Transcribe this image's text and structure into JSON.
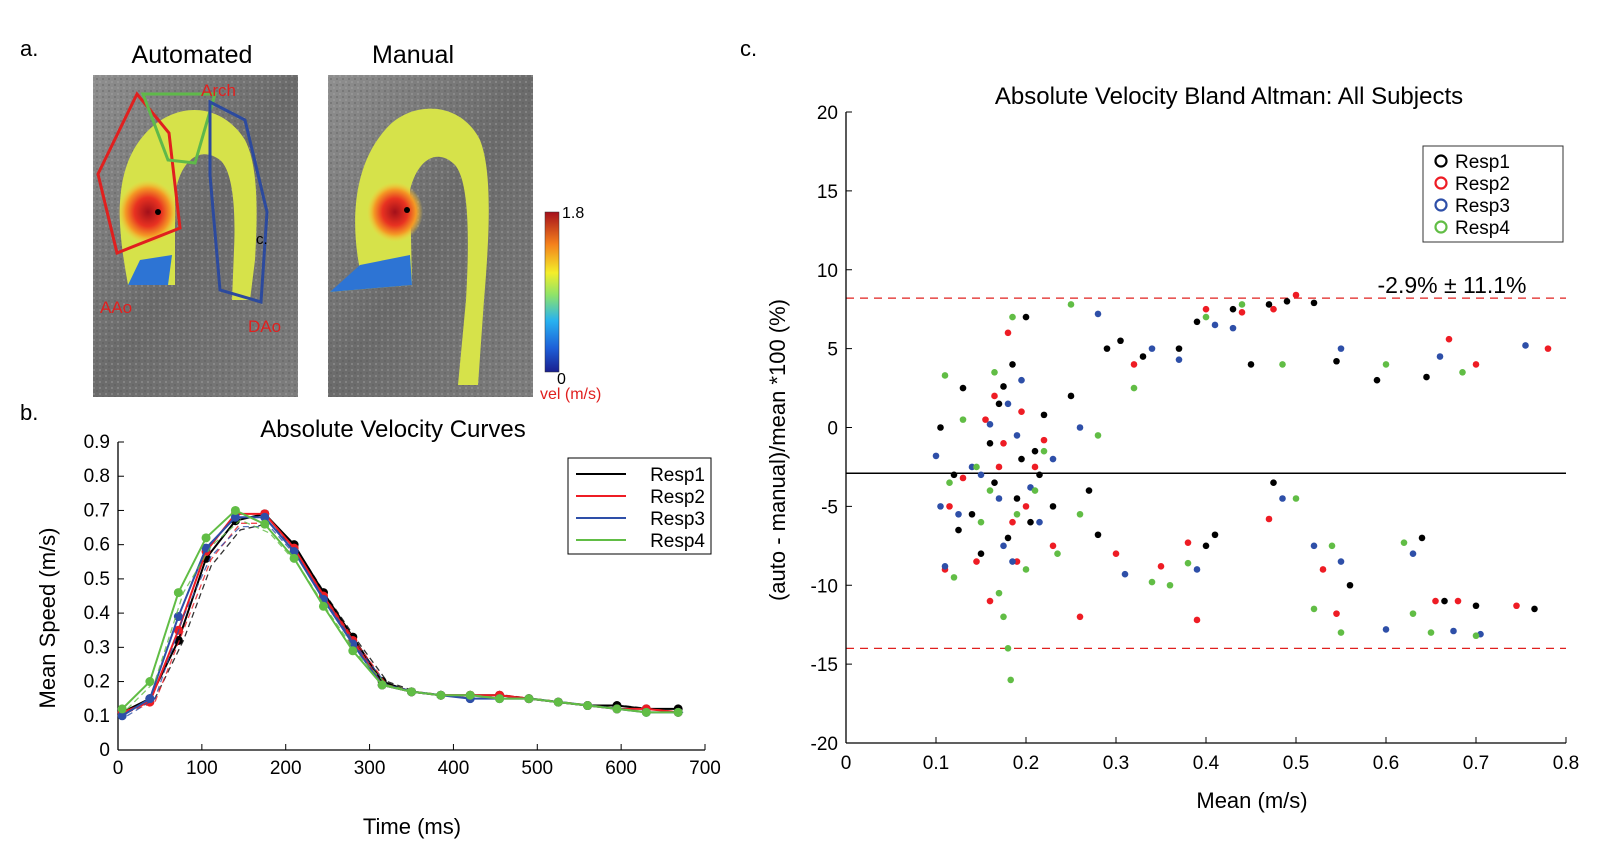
{
  "colors": {
    "resp1": "#000000",
    "resp2": "#ee1c24",
    "resp3": "#2e4fa8",
    "resp4": "#61bd45",
    "limit_line": "#e0201f",
    "roi_red": "#e0201f",
    "roi_green": "#5fb94a",
    "roi_blue": "#2c4a9e"
  },
  "panel_a": {
    "letter": "a.",
    "automated_title": "Automated",
    "manual_title": "Manual",
    "roi_labels": {
      "arch": "Arch",
      "aao": "AAo",
      "dao": "DAo",
      "c": "c."
    },
    "colorbar": {
      "max_label": "1.8",
      "min_label": "0",
      "unit_label": "vel (m/s)",
      "min": 0,
      "max": 1.8
    }
  },
  "panel_b": {
    "letter": "b.",
    "chart_data": {
      "type": "line",
      "title": "Absolute Velocity Curves",
      "xlabel": "Time (ms)",
      "ylabel": "Mean Speed (m/s)",
      "xlim": [
        0,
        700
      ],
      "ylim": [
        0,
        0.9
      ],
      "xticks": [
        "0",
        "100",
        "200",
        "300",
        "400",
        "500",
        "600",
        "700"
      ],
      "yticks": [
        "0",
        "0.1",
        "0.2",
        "0.3",
        "0.4",
        "0.5",
        "0.6",
        "0.7",
        "0.8",
        "0.9"
      ],
      "legend_position": "top-right",
      "x": [
        5,
        38,
        72,
        105,
        140,
        175,
        210,
        245,
        280,
        315,
        350,
        385,
        420,
        455,
        490,
        525,
        560,
        595,
        630,
        668
      ],
      "series": [
        {
          "name": "Resp1",
          "color_key": "resp1",
          "values": [
            0.11,
            0.15,
            0.32,
            0.56,
            0.67,
            0.69,
            0.6,
            0.46,
            0.33,
            0.2,
            0.17,
            0.16,
            0.16,
            0.16,
            0.15,
            0.14,
            0.13,
            0.13,
            0.12,
            0.12
          ]
        },
        {
          "name": "Resp2",
          "color_key": "resp2",
          "values": [
            0.11,
            0.14,
            0.35,
            0.58,
            0.69,
            0.69,
            0.59,
            0.45,
            0.32,
            0.19,
            0.17,
            0.16,
            0.16,
            0.16,
            0.15,
            0.14,
            0.13,
            0.12,
            0.12,
            0.11
          ]
        },
        {
          "name": "Resp3",
          "color_key": "resp3",
          "values": [
            0.1,
            0.15,
            0.39,
            0.59,
            0.68,
            0.68,
            0.58,
            0.44,
            0.31,
            0.19,
            0.17,
            0.16,
            0.15,
            0.15,
            0.15,
            0.14,
            0.13,
            0.12,
            0.11,
            0.11
          ]
        },
        {
          "name": "Resp4",
          "color_key": "resp4",
          "values": [
            0.12,
            0.2,
            0.46,
            0.62,
            0.7,
            0.66,
            0.56,
            0.42,
            0.29,
            0.19,
            0.17,
            0.16,
            0.16,
            0.15,
            0.15,
            0.14,
            0.13,
            0.12,
            0.11,
            0.11
          ]
        }
      ]
    }
  },
  "panel_c": {
    "letter": "c.",
    "chart_data": {
      "type": "scatter",
      "title": "Absolute Velocity Bland Altman: All Subjects",
      "xlabel": "Mean (m/s)",
      "ylabel": "(auto - manual)/mean *100    (%)",
      "xlim": [
        0,
        0.8
      ],
      "ylim": [
        -20,
        20
      ],
      "xticks": [
        "0",
        "0.1",
        "0.2",
        "0.3",
        "0.4",
        "0.5",
        "0.6",
        "0.7",
        "0.8"
      ],
      "yticks": [
        "-20",
        "-15",
        "-10",
        "-5",
        "0",
        "5",
        "10",
        "15",
        "20"
      ],
      "legend_position": "top-right",
      "mean_line": -2.9,
      "upper_limit": 8.2,
      "lower_limit": -14.0,
      "annotation": "-2.9% ± 11.1%",
      "series": [
        {
          "name": "Resp1",
          "color_key": "resp1",
          "points": [
            [
              0.105,
              0.0
            ],
            [
              0.12,
              -3.0
            ],
            [
              0.125,
              -6.5
            ],
            [
              0.13,
              2.5
            ],
            [
              0.14,
              -5.5
            ],
            [
              0.15,
              -8.0
            ],
            [
              0.16,
              -1.0
            ],
            [
              0.165,
              -3.5
            ],
            [
              0.17,
              1.5
            ],
            [
              0.175,
              2.6
            ],
            [
              0.18,
              -7.0
            ],
            [
              0.185,
              4.0
            ],
            [
              0.19,
              -4.5
            ],
            [
              0.195,
              -2.0
            ],
            [
              0.2,
              7.0
            ],
            [
              0.205,
              -6.0
            ],
            [
              0.21,
              -1.5
            ],
            [
              0.215,
              -3.0
            ],
            [
              0.22,
              0.8
            ],
            [
              0.23,
              -5.0
            ],
            [
              0.25,
              2.0
            ],
            [
              0.27,
              -4.0
            ],
            [
              0.28,
              -6.8
            ],
            [
              0.29,
              5.0
            ],
            [
              0.305,
              5.5
            ],
            [
              0.33,
              4.5
            ],
            [
              0.37,
              5.0
            ],
            [
              0.39,
              6.7
            ],
            [
              0.4,
              -7.5
            ],
            [
              0.41,
              -6.8
            ],
            [
              0.43,
              7.5
            ],
            [
              0.45,
              4.0
            ],
            [
              0.47,
              7.8
            ],
            [
              0.475,
              -3.5
            ],
            [
              0.49,
              8.0
            ],
            [
              0.52,
              7.9
            ],
            [
              0.545,
              4.2
            ],
            [
              0.56,
              -10.0
            ],
            [
              0.59,
              3.0
            ],
            [
              0.64,
              -7.0
            ],
            [
              0.645,
              3.2
            ],
            [
              0.665,
              -11.0
            ],
            [
              0.7,
              -11.3
            ],
            [
              0.765,
              -11.5
            ]
          ]
        },
        {
          "name": "Resp2",
          "color_key": "resp2",
          "points": [
            [
              0.11,
              -9.0
            ],
            [
              0.115,
              -5.0
            ],
            [
              0.13,
              -3.2
            ],
            [
              0.145,
              -8.5
            ],
            [
              0.155,
              0.5
            ],
            [
              0.16,
              -11.0
            ],
            [
              0.165,
              2.0
            ],
            [
              0.17,
              -2.5
            ],
            [
              0.175,
              -1.0
            ],
            [
              0.18,
              6.0
            ],
            [
              0.185,
              -6.0
            ],
            [
              0.19,
              -8.5
            ],
            [
              0.195,
              1.0
            ],
            [
              0.2,
              -5.0
            ],
            [
              0.21,
              -2.5
            ],
            [
              0.22,
              -0.8
            ],
            [
              0.23,
              -7.5
            ],
            [
              0.26,
              -12.0
            ],
            [
              0.3,
              -8.0
            ],
            [
              0.32,
              4.0
            ],
            [
              0.35,
              -8.8
            ],
            [
              0.38,
              -7.3
            ],
            [
              0.39,
              -12.2
            ],
            [
              0.4,
              7.5
            ],
            [
              0.44,
              7.3
            ],
            [
              0.47,
              -5.8
            ],
            [
              0.475,
              7.5
            ],
            [
              0.5,
              8.4
            ],
            [
              0.53,
              -9.0
            ],
            [
              0.545,
              -11.8
            ],
            [
              0.655,
              -11.0
            ],
            [
              0.67,
              5.6
            ],
            [
              0.68,
              -11.0
            ],
            [
              0.7,
              4.0
            ],
            [
              0.745,
              -11.3
            ],
            [
              0.78,
              5.0
            ]
          ]
        },
        {
          "name": "Resp3",
          "color_key": "resp3",
          "points": [
            [
              0.1,
              -1.8
            ],
            [
              0.105,
              -5.0
            ],
            [
              0.11,
              -8.8
            ],
            [
              0.125,
              -5.5
            ],
            [
              0.14,
              -2.5
            ],
            [
              0.15,
              -3.0
            ],
            [
              0.16,
              0.2
            ],
            [
              0.17,
              -4.5
            ],
            [
              0.175,
              -7.5
            ],
            [
              0.18,
              1.5
            ],
            [
              0.185,
              -8.5
            ],
            [
              0.19,
              -0.5
            ],
            [
              0.195,
              3.0
            ],
            [
              0.205,
              -3.8
            ],
            [
              0.215,
              -6.0
            ],
            [
              0.23,
              -2.0
            ],
            [
              0.26,
              0.0
            ],
            [
              0.28,
              7.2
            ],
            [
              0.31,
              -9.3
            ],
            [
              0.34,
              5.0
            ],
            [
              0.37,
              4.3
            ],
            [
              0.39,
              -9.0
            ],
            [
              0.41,
              6.5
            ],
            [
              0.43,
              6.3
            ],
            [
              0.485,
              -4.5
            ],
            [
              0.52,
              -7.5
            ],
            [
              0.55,
              -8.5
            ],
            [
              0.55,
              5.0
            ],
            [
              0.6,
              -12.8
            ],
            [
              0.63,
              -8.0
            ],
            [
              0.66,
              4.5
            ],
            [
              0.675,
              -12.9
            ],
            [
              0.705,
              -13.1
            ],
            [
              0.755,
              5.2
            ]
          ]
        },
        {
          "name": "Resp4",
          "color_key": "resp4",
          "points": [
            [
              0.11,
              3.3
            ],
            [
              0.115,
              -3.5
            ],
            [
              0.12,
              -9.5
            ],
            [
              0.13,
              0.5
            ],
            [
              0.145,
              -2.5
            ],
            [
              0.15,
              -6.0
            ],
            [
              0.16,
              -4.0
            ],
            [
              0.165,
              3.5
            ],
            [
              0.17,
              -10.5
            ],
            [
              0.175,
              -12.0
            ],
            [
              0.18,
              -14.0
            ],
            [
              0.183,
              -16.0
            ],
            [
              0.185,
              7.0
            ],
            [
              0.19,
              -5.5
            ],
            [
              0.2,
              -9.0
            ],
            [
              0.21,
              -4.0
            ],
            [
              0.22,
              -1.5
            ],
            [
              0.235,
              -8.0
            ],
            [
              0.25,
              7.8
            ],
            [
              0.26,
              -5.5
            ],
            [
              0.28,
              -0.5
            ],
            [
              0.32,
              2.5
            ],
            [
              0.34,
              -9.8
            ],
            [
              0.36,
              -10.0
            ],
            [
              0.38,
              -8.6
            ],
            [
              0.4,
              7.0
            ],
            [
              0.44,
              7.8
            ],
            [
              0.485,
              4.0
            ],
            [
              0.5,
              -4.5
            ],
            [
              0.52,
              -11.5
            ],
            [
              0.54,
              -7.5
            ],
            [
              0.55,
              -13.0
            ],
            [
              0.6,
              4.0
            ],
            [
              0.62,
              -7.3
            ],
            [
              0.63,
              -11.8
            ],
            [
              0.65,
              -13.0
            ],
            [
              0.685,
              3.5
            ],
            [
              0.7,
              -13.2
            ]
          ]
        }
      ]
    }
  }
}
